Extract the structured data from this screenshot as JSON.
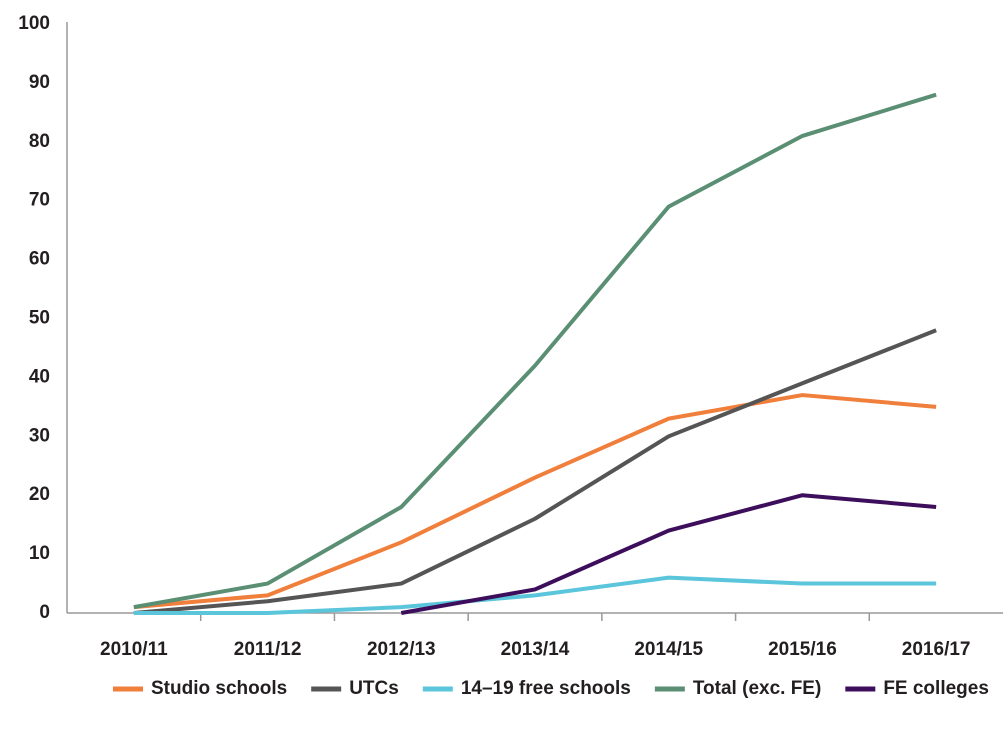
{
  "chart_data": {
    "type": "line",
    "categories": [
      "2010/11",
      "2011/12",
      "2012/13",
      "2013/14",
      "2014/15",
      "2015/16",
      "2016/17"
    ],
    "series": [
      {
        "name": "Studio schools",
        "color": "#f07f3c",
        "values": [
          1,
          3,
          12,
          23,
          33,
          37,
          35
        ]
      },
      {
        "name": "UTCs",
        "color": "#555555",
        "values": [
          0,
          2,
          5,
          16,
          30,
          39,
          48
        ]
      },
      {
        "name": "14–19 free schools",
        "color": "#5bc5db",
        "values": [
          0,
          0,
          1,
          3,
          6,
          5,
          5
        ]
      },
      {
        "name": "Total (exc. FE)",
        "color": "#5a8f74",
        "values": [
          1,
          5,
          18,
          42,
          69,
          81,
          88
        ]
      },
      {
        "name": "FE colleges",
        "color": "#3d0e5b",
        "values": [
          null,
          null,
          0,
          4,
          14,
          20,
          18
        ]
      }
    ],
    "ylim": [
      0,
      100
    ],
    "yticks": [
      0,
      10,
      20,
      30,
      40,
      50,
      60,
      70,
      80,
      90,
      100
    ],
    "grid": false
  }
}
